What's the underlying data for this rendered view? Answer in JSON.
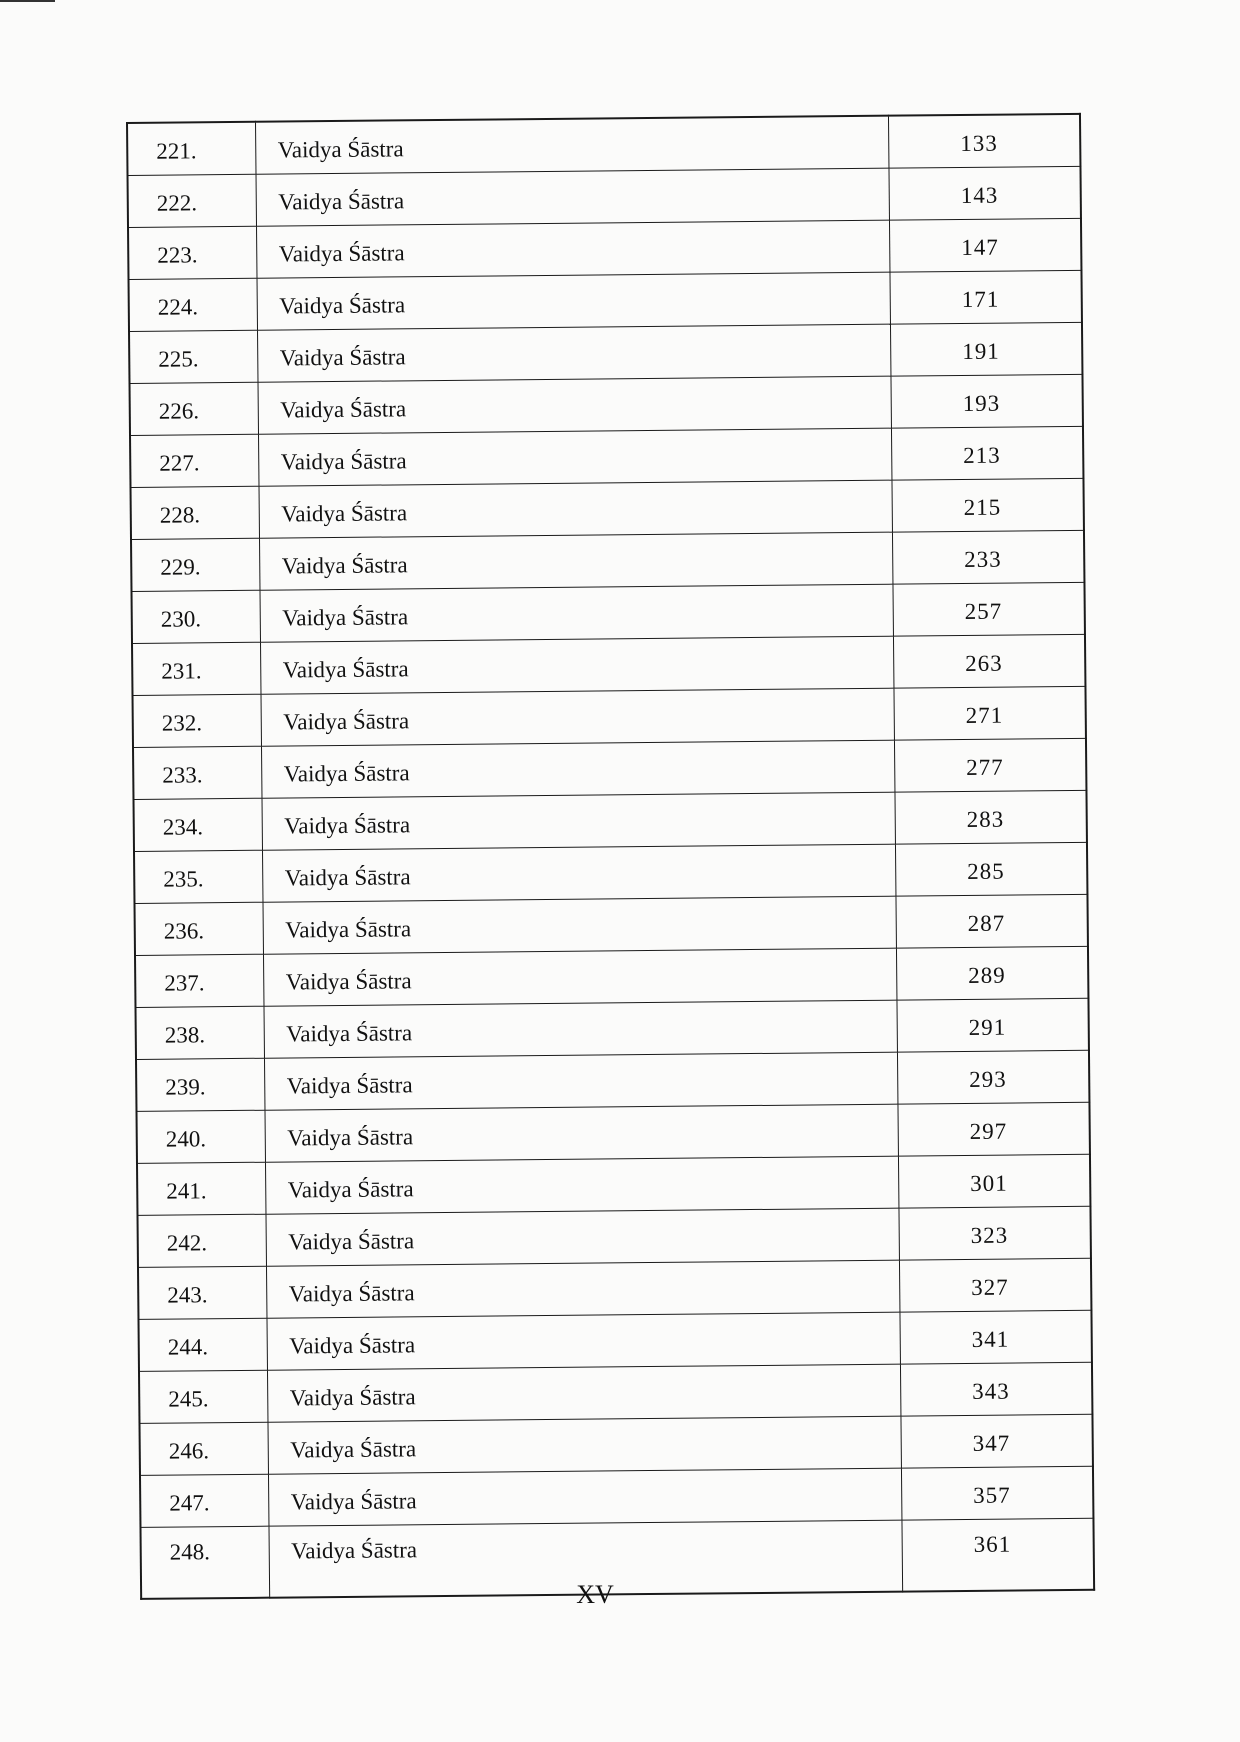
{
  "table": {
    "rows": [
      {
        "no": "221.",
        "title": "Vaidya Śāstra",
        "page": "133"
      },
      {
        "no": "222.",
        "title": "Vaidya Śāstra",
        "page": "143"
      },
      {
        "no": "223.",
        "title": "Vaidya Śāstra",
        "page": "147"
      },
      {
        "no": "224.",
        "title": "Vaidya Śāstra",
        "page": "171"
      },
      {
        "no": "225.",
        "title": "Vaidya Śāstra",
        "page": "191"
      },
      {
        "no": "226.",
        "title": "Vaidya Śāstra",
        "page": "193"
      },
      {
        "no": "227.",
        "title": "Vaidya Śāstra",
        "page": "213"
      },
      {
        "no": "228.",
        "title": "Vaidya Śāstra",
        "page": "215"
      },
      {
        "no": "229.",
        "title": "Vaidya Śāstra",
        "page": "233"
      },
      {
        "no": "230.",
        "title": "Vaidya Śāstra",
        "page": "257"
      },
      {
        "no": "231.",
        "title": "Vaidya Śāstra",
        "page": "263"
      },
      {
        "no": "232.",
        "title": "Vaidya Śāstra",
        "page": "271"
      },
      {
        "no": "233.",
        "title": "Vaidya Śāstra",
        "page": "277"
      },
      {
        "no": "234.",
        "title": "Vaidya Śāstra",
        "page": "283"
      },
      {
        "no": "235.",
        "title": "Vaidya Śāstra",
        "page": "285"
      },
      {
        "no": "236.",
        "title": "Vaidya Śāstra",
        "page": "287"
      },
      {
        "no": "237.",
        "title": "Vaidya Śāstra",
        "page": "289"
      },
      {
        "no": "238.",
        "title": "Vaidya Śāstra",
        "page": "291"
      },
      {
        "no": "239.",
        "title": "Vaidya Śāstra",
        "page": "293"
      },
      {
        "no": "240.",
        "title": "Vaidya Śāstra",
        "page": "297"
      },
      {
        "no": "241.",
        "title": "Vaidya Śāstra",
        "page": "301"
      },
      {
        "no": "242.",
        "title": "Vaidya Śāstra",
        "page": "323"
      },
      {
        "no": "243.",
        "title": "Vaidya Śāstra",
        "page": "327"
      },
      {
        "no": "244.",
        "title": "Vaidya Śāstra",
        "page": "341"
      },
      {
        "no": "245.",
        "title": "Vaidya Śāstra",
        "page": "343"
      },
      {
        "no": "246.",
        "title": "Vaidya Śāstra",
        "page": "347"
      },
      {
        "no": "247.",
        "title": "Vaidya Śāstra",
        "page": "357"
      },
      {
        "no": "248.",
        "title": "Vaidya Śāstra",
        "page": "361"
      }
    ]
  },
  "footer": {
    "page_number": "XV"
  }
}
